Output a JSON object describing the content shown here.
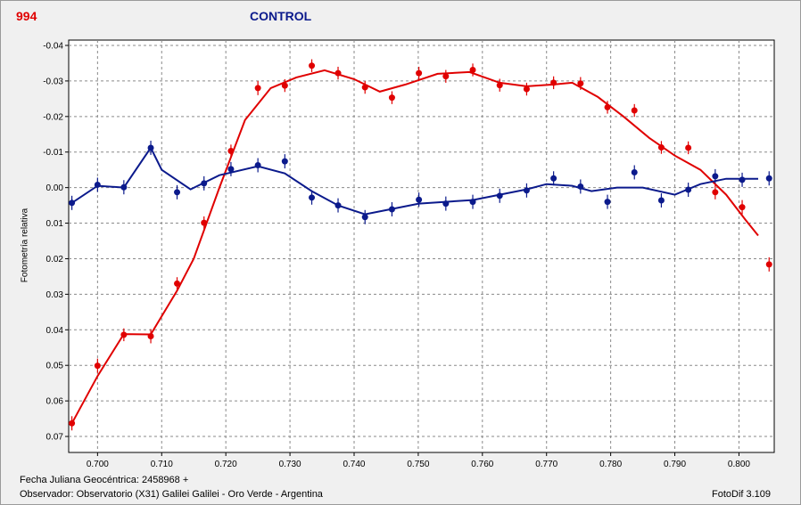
{
  "header": {
    "object_id": "994",
    "title": "CONTROL"
  },
  "footer": {
    "date_line": "Fecha Juliana Geocéntrica: 2458968 +",
    "observer_line": "Observador: Observatorio (X31) Galilei Galilei - Oro Verde - Argentina",
    "software": "FotoDif 3.109"
  },
  "colors": {
    "series_red": "#e00000",
    "series_blue": "#0b1a8c",
    "grid": "#8a8a8a",
    "plot_bg": "#ffffff"
  },
  "chart_data": {
    "type": "scatter",
    "title": "CONTROL",
    "xlabel": "",
    "ylabel": "Fotometría relativa",
    "xlim": [
      0.6955,
      0.8055
    ],
    "ylim": [
      -0.0415,
      0.0745
    ],
    "y_inverted": true,
    "grid": true,
    "x_ticks": [
      0.7,
      0.71,
      0.72,
      0.73,
      0.74,
      0.75,
      0.76,
      0.77,
      0.78,
      0.79,
      0.8
    ],
    "x_tick_labels": [
      "0.700",
      "0.710",
      "0.720",
      "0.730",
      "0.740",
      "0.750",
      "0.760",
      "0.770",
      "0.780",
      "0.790",
      "0.800"
    ],
    "y_ticks": [
      -0.04,
      -0.03,
      -0.02,
      -0.01,
      0.0,
      0.01,
      0.02,
      0.03,
      0.04,
      0.05,
      0.06,
      0.07
    ],
    "y_tick_labels": [
      "-0.04",
      "-0.03",
      "-0.02",
      "-0.01",
      "0.00",
      "0.01",
      "0.02",
      "0.03",
      "0.04",
      "0.05",
      "0.06",
      "0.07"
    ],
    "series": [
      {
        "color": "#e00000",
        "points": [
          [
            0.696,
            0.0663
          ],
          [
            0.7,
            0.0501
          ],
          [
            0.7041,
            0.0414
          ],
          [
            0.7083,
            0.0418
          ],
          [
            0.7124,
            0.027
          ],
          [
            0.7166,
            0.0099
          ],
          [
            0.7208,
            -0.0103
          ],
          [
            0.725,
            -0.028
          ],
          [
            0.7292,
            -0.0287
          ],
          [
            0.7334,
            -0.0343
          ],
          [
            0.7375,
            -0.0322
          ],
          [
            0.7417,
            -0.0282
          ],
          [
            0.7459,
            -0.0253
          ],
          [
            0.7501,
            -0.0322
          ],
          [
            0.7543,
            -0.0313
          ],
          [
            0.7585,
            -0.0331
          ],
          [
            0.7627,
            -0.0288
          ],
          [
            0.7669,
            -0.0277
          ],
          [
            0.7711,
            -0.0295
          ],
          [
            0.7753,
            -0.0293
          ],
          [
            0.7795,
            -0.0226
          ],
          [
            0.7837,
            -0.0217
          ],
          [
            0.7879,
            -0.0113
          ],
          [
            0.7921,
            -0.0112
          ],
          [
            0.7963,
            0.0013
          ],
          [
            0.8005,
            0.0055
          ],
          [
            0.8047,
            0.0216
          ]
        ],
        "errors": [
          0.002,
          0.002,
          0.0018,
          0.002,
          0.0018,
          0.0018,
          0.0018,
          0.002,
          0.0018,
          0.0018,
          0.0018,
          0.0018,
          0.0018,
          0.0018,
          0.0018,
          0.0018,
          0.0018,
          0.0018,
          0.0018,
          0.0018,
          0.0018,
          0.0018,
          0.0018,
          0.0018,
          0.002,
          0.002,
          0.002
        ],
        "fit": [
          [
            0.696,
            0.0663
          ],
          [
            0.7,
            0.053
          ],
          [
            0.7041,
            0.0412
          ],
          [
            0.7083,
            0.0413
          ],
          [
            0.7124,
            0.029
          ],
          [
            0.715,
            0.02
          ],
          [
            0.719,
            0.0
          ],
          [
            0.723,
            -0.019
          ],
          [
            0.727,
            -0.028
          ],
          [
            0.731,
            -0.031
          ],
          [
            0.7354,
            -0.033
          ],
          [
            0.74,
            -0.0305
          ],
          [
            0.744,
            -0.027
          ],
          [
            0.748,
            -0.029
          ],
          [
            0.753,
            -0.032
          ],
          [
            0.758,
            -0.0325
          ],
          [
            0.7627,
            -0.0295
          ],
          [
            0.7669,
            -0.0285
          ],
          [
            0.7711,
            -0.029
          ],
          [
            0.774,
            -0.0295
          ],
          [
            0.778,
            -0.0255
          ],
          [
            0.782,
            -0.02
          ],
          [
            0.786,
            -0.014
          ],
          [
            0.79,
            -0.009
          ],
          [
            0.794,
            -0.005
          ],
          [
            0.798,
            0.002
          ],
          [
            0.801,
            0.009
          ],
          [
            0.803,
            0.0135
          ]
        ]
      },
      {
        "color": "#0b1a8c",
        "points": [
          [
            0.696,
            0.0043
          ],
          [
            0.7,
            -0.0008
          ],
          [
            0.7041,
            -0.0001
          ],
          [
            0.7083,
            -0.0112
          ],
          [
            0.7124,
            0.0013
          ],
          [
            0.7166,
            -0.0012
          ],
          [
            0.7208,
            -0.0052
          ],
          [
            0.725,
            -0.0063
          ],
          [
            0.7292,
            -0.0074
          ],
          [
            0.7334,
            0.0028
          ],
          [
            0.7375,
            0.005
          ],
          [
            0.7417,
            0.0083
          ],
          [
            0.7459,
            0.0061
          ],
          [
            0.7501,
            0.0034
          ],
          [
            0.7543,
            0.0045
          ],
          [
            0.7585,
            0.004
          ],
          [
            0.7627,
            0.0023
          ],
          [
            0.7669,
            0.0008
          ],
          [
            0.7711,
            -0.0026
          ],
          [
            0.7753,
            -0.0003
          ],
          [
            0.7795,
            0.004
          ],
          [
            0.7837,
            -0.0043
          ],
          [
            0.7879,
            0.0036
          ],
          [
            0.7921,
            0.0006
          ],
          [
            0.7963,
            -0.0032
          ],
          [
            0.8005,
            -0.0022
          ],
          [
            0.8047,
            -0.0026
          ]
        ],
        "errors": [
          0.002,
          0.002,
          0.002,
          0.002,
          0.002,
          0.002,
          0.002,
          0.002,
          0.002,
          0.002,
          0.002,
          0.002,
          0.002,
          0.002,
          0.002,
          0.002,
          0.002,
          0.002,
          0.002,
          0.002,
          0.002,
          0.002,
          0.002,
          0.002,
          0.002,
          0.002,
          0.002
        ],
        "fit": [
          [
            0.696,
            0.0043
          ],
          [
            0.7,
            -0.0005
          ],
          [
            0.7041,
            0.0
          ],
          [
            0.7083,
            -0.0112
          ],
          [
            0.71,
            -0.005
          ],
          [
            0.7145,
            0.0005
          ],
          [
            0.719,
            -0.0035
          ],
          [
            0.725,
            -0.006
          ],
          [
            0.7292,
            -0.004
          ],
          [
            0.7334,
            0.001
          ],
          [
            0.7375,
            0.005
          ],
          [
            0.7417,
            0.0075
          ],
          [
            0.7459,
            0.006
          ],
          [
            0.7501,
            0.0045
          ],
          [
            0.7543,
            0.004
          ],
          [
            0.7585,
            0.0035
          ],
          [
            0.7627,
            0.002
          ],
          [
            0.7669,
            0.0005
          ],
          [
            0.77,
            -0.001
          ],
          [
            0.774,
            -0.0005
          ],
          [
            0.777,
            0.001
          ],
          [
            0.781,
            0.0
          ],
          [
            0.785,
            0.0
          ],
          [
            0.79,
            0.002
          ],
          [
            0.794,
            -0.001
          ],
          [
            0.798,
            -0.0025
          ],
          [
            0.803,
            -0.0025
          ]
        ]
      }
    ]
  }
}
